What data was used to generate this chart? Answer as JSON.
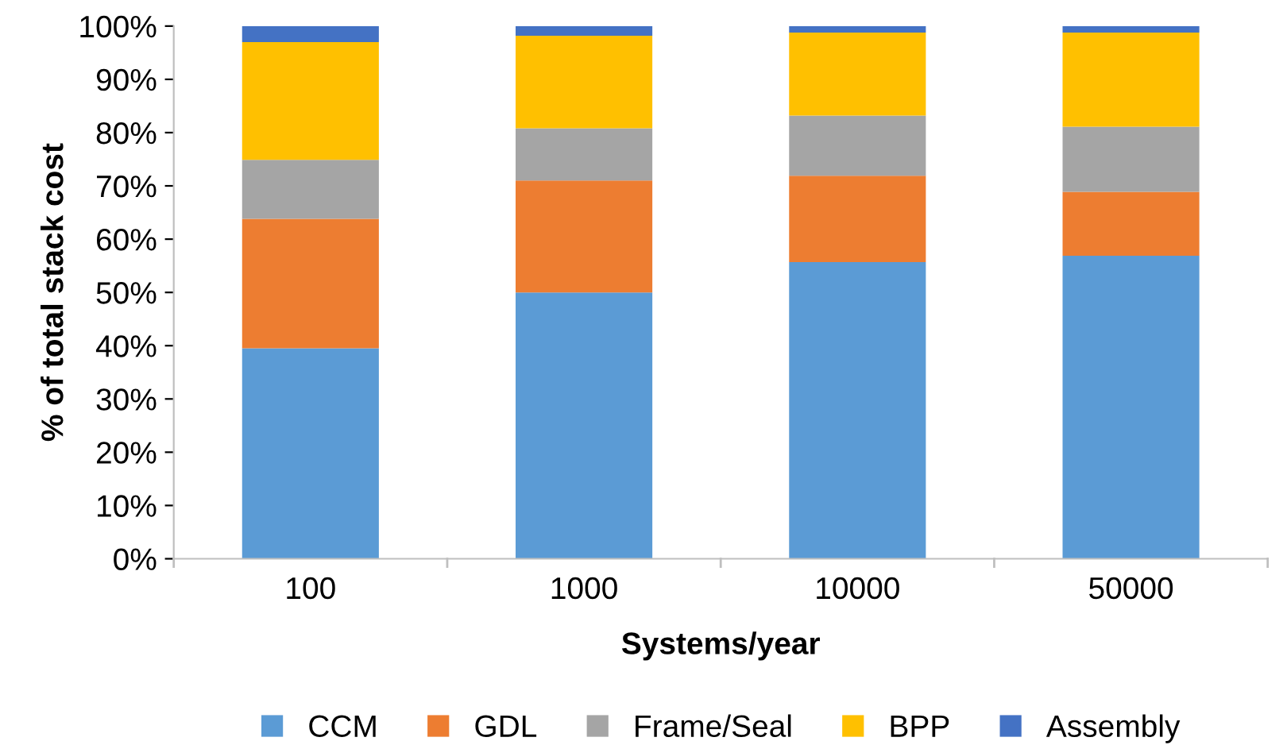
{
  "chart_data": {
    "type": "bar",
    "stacked": true,
    "xlabel": "Systems/year",
    "ylabel": "% of total stack cost",
    "categories": [
      "100",
      "1000",
      "10000",
      "50000"
    ],
    "series": [
      {
        "name": "CCM",
        "color": "#5b9bd5",
        "values": [
          39.5,
          50.0,
          55.7,
          56.9
        ]
      },
      {
        "name": "GDL",
        "color": "#ed7d31",
        "values": [
          24.3,
          21.0,
          16.2,
          12.0
        ]
      },
      {
        "name": "Frame/Seal",
        "color": "#a5a5a5",
        "values": [
          11.1,
          9.8,
          11.3,
          12.2
        ]
      },
      {
        "name": "BPP",
        "color": "#ffc000",
        "values": [
          22.1,
          17.4,
          15.6,
          17.7
        ]
      },
      {
        "name": "Assembly",
        "color": "#4472c4",
        "values": [
          3.0,
          1.8,
          1.2,
          1.2
        ]
      }
    ],
    "ylim": [
      0,
      100
    ],
    "yticks": [
      {
        "value": 0,
        "label": "0%"
      },
      {
        "value": 10,
        "label": "10%"
      },
      {
        "value": 20,
        "label": "20%"
      },
      {
        "value": 30,
        "label": "30%"
      },
      {
        "value": 40,
        "label": "40%"
      },
      {
        "value": 50,
        "label": "50%"
      },
      {
        "value": 60,
        "label": "60%"
      },
      {
        "value": 70,
        "label": "70%"
      },
      {
        "value": 80,
        "label": "80%"
      },
      {
        "value": 90,
        "label": "90%"
      },
      {
        "value": 100,
        "label": "100%"
      }
    ],
    "legend": "bottom"
  }
}
